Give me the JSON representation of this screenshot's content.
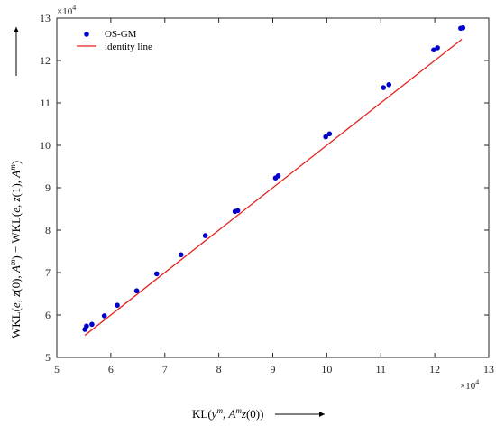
{
  "chart_data": {
    "type": "scatter",
    "xlabel": "KL(y^m, A^m z(0))",
    "ylabel": "WKL(e, z(0), A^m) − WKL(e, z(1), A^m)",
    "x_exponent": "×10^4",
    "y_exponent": "×10^4",
    "xlim": [
      5,
      13
    ],
    "ylim": [
      5,
      13
    ],
    "x_ticks": [
      5,
      6,
      7,
      8,
      9,
      10,
      11,
      12,
      13
    ],
    "y_ticks": [
      5,
      6,
      7,
      8,
      9,
      10,
      11,
      12,
      13
    ],
    "grid": false,
    "legend_position": "top-left",
    "series": [
      {
        "name": "OS-GM",
        "kind": "scatter",
        "color": "#0000cc",
        "points": [
          [
            5.52,
            5.66
          ],
          [
            5.55,
            5.74
          ],
          [
            5.65,
            5.78
          ],
          [
            5.88,
            5.98
          ],
          [
            6.12,
            6.23
          ],
          [
            6.48,
            6.57
          ],
          [
            6.85,
            6.97
          ],
          [
            7.3,
            7.42
          ],
          [
            7.75,
            7.87
          ],
          [
            8.3,
            8.44
          ],
          [
            8.35,
            8.46
          ],
          [
            9.05,
            9.23
          ],
          [
            9.1,
            9.28
          ],
          [
            9.98,
            10.2
          ],
          [
            10.05,
            10.27
          ],
          [
            11.05,
            11.36
          ],
          [
            11.15,
            11.43
          ],
          [
            11.98,
            12.25
          ],
          [
            12.05,
            12.3
          ],
          [
            12.48,
            12.76
          ],
          [
            12.52,
            12.77
          ]
        ]
      },
      {
        "name": "identity line",
        "kind": "line",
        "color": "#e3231e",
        "points": [
          [
            5.52,
            5.52
          ],
          [
            12.5,
            12.5
          ]
        ]
      }
    ]
  }
}
